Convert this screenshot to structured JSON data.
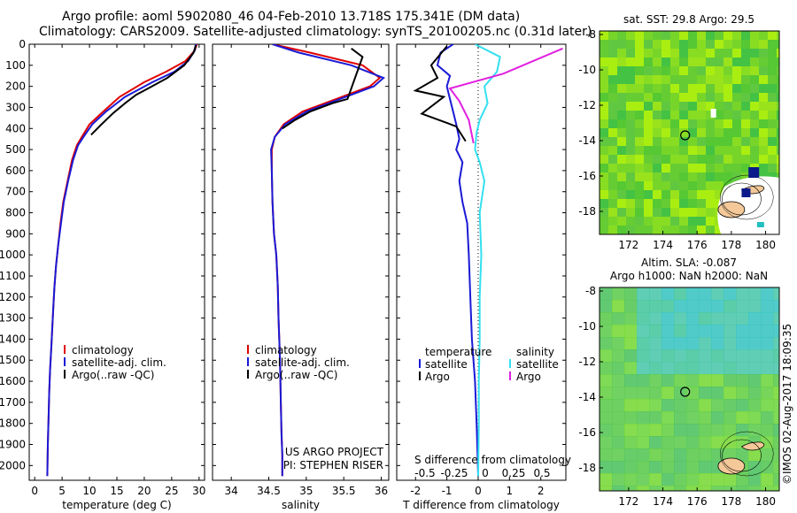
{
  "header": {
    "line1": "Argo profile: aoml 5902080_46 04-Feb-2010 13.718S 175.341E (DM data)",
    "line2": "Climatology: CARS2009. Satellite-adjusted climatology: synTS_20100205.nc (0.31d later)"
  },
  "colors": {
    "climatology": "#e00000",
    "satellite": "#1a1ad6",
    "argo": "#000000",
    "sal_satellite": "#33e0f0",
    "sal_argo": "#e020e0",
    "map_bg": "#88dd22",
    "map_ocean": "#55cc44",
    "land": "#f4c898"
  },
  "chart_data": [
    {
      "type": "line",
      "xlabel": "temperature (deg C)",
      "ylabel": "",
      "xlim": [
        -1,
        31
      ],
      "ylim": [
        2070,
        0
      ],
      "xticks": [
        0,
        5,
        10,
        15,
        20,
        25,
        30
      ],
      "yticks": [
        0,
        100,
        200,
        300,
        400,
        500,
        600,
        700,
        800,
        900,
        1000,
        1100,
        1200,
        1300,
        1400,
        1500,
        1600,
        1700,
        1800,
        1900,
        2000
      ],
      "legend": [
        "climatology",
        "satellite-adj. clim.",
        "Argo(..raw -QC)"
      ],
      "series": [
        {
          "name": "climatology",
          "color": "climatology",
          "x": [
            29.6,
            29.2,
            27.5,
            24,
            20,
            15.5,
            12.5,
            10,
            8.6,
            7.7,
            6.8,
            6,
            5.2,
            4.7,
            4.3,
            3.9,
            3.6,
            3.4,
            3.2,
            3.0,
            2.8,
            2.65,
            2.55,
            2.4,
            2.3
          ],
          "y": [
            0,
            30,
            80,
            130,
            180,
            250,
            320,
            380,
            440,
            480,
            550,
            650,
            750,
            850,
            950,
            1050,
            1150,
            1250,
            1350,
            1450,
            1550,
            1650,
            1750,
            1900,
            2050
          ]
        },
        {
          "name": "satellite-adj. clim.",
          "color": "satellite",
          "x": [
            29.4,
            29.2,
            28,
            25.5,
            21.5,
            16.5,
            13,
            10.5,
            8.9,
            7.9,
            7,
            6.1,
            5.3,
            4.8,
            4.3,
            3.9,
            3.6,
            3.4,
            3.2,
            3.0,
            2.8,
            2.65,
            2.55,
            2.4,
            2.3
          ],
          "y": [
            0,
            30,
            80,
            130,
            180,
            250,
            320,
            380,
            440,
            480,
            550,
            650,
            750,
            850,
            950,
            1050,
            1150,
            1250,
            1350,
            1450,
            1550,
            1650,
            1750,
            1900,
            2050
          ]
        },
        {
          "name": "Argo(..raw -QC)",
          "color": "argo",
          "x": [
            29.4,
            29.0,
            27.3,
            24.2,
            21.4,
            18.5,
            16.5,
            14.2,
            12.2,
            10.3
          ],
          "y": [
            5,
            40,
            100,
            160,
            200,
            240,
            280,
            330,
            380,
            430
          ]
        }
      ]
    },
    {
      "type": "line",
      "xlabel": "salinity",
      "ylabel": "",
      "xlim": [
        33.75,
        36.1
      ],
      "ylim": [
        2070,
        0
      ],
      "xticks": [
        34,
        34.5,
        35,
        35.5,
        36
      ],
      "legend": [
        "climatology",
        "satellite-adj. clim.",
        "Argo(..raw -QC)"
      ],
      "annotation": [
        "US ARGO PROJECT",
        "PI: STEPHEN RISER"
      ],
      "series": [
        {
          "name": "climatology",
          "color": "climatology",
          "x": [
            34.55,
            35.05,
            35.75,
            35.98,
            35.85,
            35.4,
            34.95,
            34.7,
            34.58,
            34.54,
            34.54,
            34.55,
            34.57,
            34.6,
            34.62,
            34.63,
            34.65,
            34.66,
            34.67,
            34.68,
            34.68
          ],
          "y": [
            0,
            40,
            100,
            160,
            200,
            260,
            320,
            380,
            440,
            500,
            600,
            750,
            900,
            1000,
            1150,
            1300,
            1500,
            1700,
            1850,
            1950,
            2050
          ]
        },
        {
          "name": "satellite-adj. clim.",
          "color": "satellite",
          "x": [
            34.55,
            34.9,
            35.6,
            36.03,
            35.9,
            35.45,
            35.0,
            34.72,
            34.58,
            34.53,
            34.54,
            34.55,
            34.57,
            34.6,
            34.62,
            34.63,
            34.65,
            34.66,
            34.67,
            34.68,
            34.68
          ],
          "y": [
            0,
            40,
            100,
            160,
            200,
            260,
            320,
            380,
            440,
            500,
            600,
            750,
            900,
            1000,
            1150,
            1300,
            1500,
            1700,
            1850,
            1950,
            2050
          ]
        },
        {
          "name": "Argo(..raw -QC)",
          "color": "argo",
          "x": [
            35.6,
            35.75,
            35.55,
            35.35,
            35.05,
            34.85,
            34.68
          ],
          "y": [
            20,
            60,
            260,
            280,
            320,
            360,
            400
          ]
        }
      ]
    },
    {
      "type": "line",
      "xlabel": "T difference from climatology",
      "x2label": "S difference from climatology",
      "xlim": [
        -2.6,
        2.8
      ],
      "ylim": [
        2070,
        0
      ],
      "xticks": [
        -2,
        -1,
        0,
        1,
        2
      ],
      "x2ticks": [
        "-0.5",
        "-0.25",
        "0",
        "0.25",
        "0.5"
      ],
      "legend_temperature": [
        "temperature",
        "satellite",
        "Argo"
      ],
      "legend_salinity": [
        "salinity",
        "satellite",
        "Argo"
      ],
      "series": [
        {
          "name": "T satellite",
          "color": "satellite",
          "x": [
            -0.8,
            -1.2,
            -1.3,
            -0.9,
            -1.0,
            -0.9,
            -0.8,
            -0.7,
            -0.6,
            -0.7,
            -0.5,
            -0.6,
            -0.5,
            -0.35,
            -0.3,
            -0.25,
            -0.2,
            -0.1,
            -0.05,
            0
          ],
          "y": [
            0,
            40,
            100,
            150,
            200,
            260,
            320,
            380,
            450,
            500,
            560,
            650,
            750,
            850,
            1000,
            1200,
            1400,
            1600,
            1800,
            2050
          ]
        },
        {
          "name": "T Argo",
          "color": "argo",
          "x": [
            -1.0,
            -1.5,
            -1.3,
            -2.0,
            -1.1,
            -1.8,
            -0.7,
            -0.4
          ],
          "y": [
            10,
            100,
            160,
            220,
            250,
            330,
            390,
            460
          ]
        },
        {
          "name": "S satellite",
          "color": "sal_satellite",
          "x": [
            -0.1,
            0.7,
            0.6,
            0.2,
            0.3,
            0.05,
            -0.05,
            -0.1,
            0.05,
            0.2,
            0.05,
            0.1,
            0.05,
            0.05,
            0.02,
            0.02,
            0
          ],
          "y": [
            0,
            60,
            130,
            200,
            280,
            360,
            420,
            500,
            560,
            650,
            800,
            1000,
            1200,
            1400,
            1600,
            1800,
            2050
          ]
        },
        {
          "name": "S Argo",
          "color": "sal_argo",
          "x": [
            2.7,
            0.8,
            -0.9,
            -0.6,
            -0.3,
            -0.15
          ],
          "y": [
            20,
            140,
            210,
            270,
            360,
            470
          ]
        }
      ]
    },
    {
      "type": "heatmap",
      "title": "sat. SST: 29.8  Argo: 29.5",
      "xticks": [
        172,
        174,
        176,
        178,
        180
      ],
      "yticks": [
        -8,
        -10,
        -12,
        -14,
        -16,
        -18
      ],
      "xlim": [
        170.3,
        180.8
      ],
      "ylim": [
        -19.3,
        -7.8
      ],
      "marker": {
        "lon": 175.3,
        "lat": -13.7
      }
    },
    {
      "type": "heatmap",
      "title": "Altim. SLA: -0.087",
      "subtitle": "Argo h1000: NaN h2000: NaN",
      "xticks": [
        172,
        174,
        176,
        178,
        180
      ],
      "yticks": [
        -8,
        -10,
        -12,
        -14,
        -16,
        -18
      ],
      "xlim": [
        170.3,
        180.8
      ],
      "ylim": [
        -19.3,
        -7.8
      ],
      "marker": {
        "lon": 175.3,
        "lat": -13.7
      }
    }
  ],
  "credit": "©IMOS 02-Aug-2017 18:09:35"
}
